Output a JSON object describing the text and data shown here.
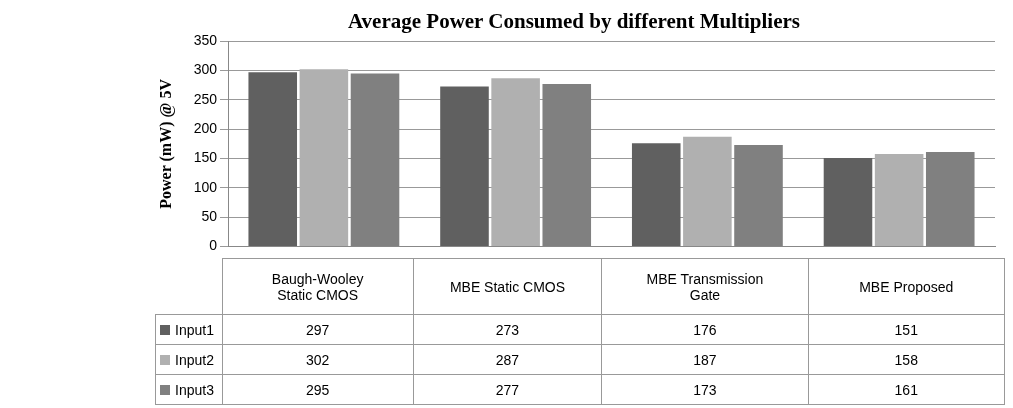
{
  "chart_data": {
    "type": "bar",
    "title": "Average Power Consumed by different Multipliers",
    "ylabel": "Power (mW) @ 5V",
    "categories": [
      "Baugh-Wooley Static CMOS",
      "MBE Static CMOS",
      "MBE Transmission Gate",
      "MBE Proposed"
    ],
    "series": [
      {
        "name": "Input1",
        "color": "#606060",
        "values": [
          297,
          273,
          176,
          151
        ]
      },
      {
        "name": "Input2",
        "color": "#b0b0b0",
        "values": [
          302,
          287,
          187,
          158
        ]
      },
      {
        "name": "Input3",
        "color": "#808080",
        "values": [
          295,
          277,
          173,
          161
        ]
      }
    ],
    "ylim": [
      0,
      350
    ],
    "yticks": [
      0,
      50,
      100,
      150,
      200,
      250,
      300,
      350
    ],
    "grid": "y",
    "legend": "bottom",
    "data_labels": true
  }
}
